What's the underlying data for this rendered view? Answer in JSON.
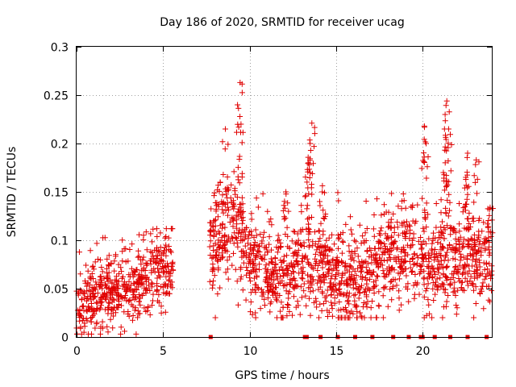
{
  "chart_data": {
    "type": "scatter",
    "title": "Day 186 of 2020, SRMTID for receiver ucag",
    "xlabel": "GPS time / hours",
    "ylabel": "SRMTID / TECUs",
    "xlim": [
      0,
      24
    ],
    "ylim": [
      0,
      0.3
    ],
    "x_ticks": [
      0,
      5,
      10,
      15,
      20
    ],
    "x_tick_labels": [
      "0",
      "5",
      "10",
      "15",
      "20"
    ],
    "y_ticks": [
      0,
      0.05,
      0.1,
      0.15,
      0.2,
      0.25,
      0.3
    ],
    "y_tick_labels": [
      "0",
      "0.05",
      "0.1",
      "0.15",
      "0.2",
      "0.25",
      "0.3"
    ],
    "grid": true,
    "marker": "+",
    "series": [
      {
        "name": "SRMTID",
        "color": "#e00000",
        "segments": [
          {
            "x_start": 0.0,
            "x_end": 5.6,
            "n": 520,
            "baseline": [
              [
                0,
                0.035
              ],
              [
                1,
                0.04
              ],
              [
                2,
                0.045
              ],
              [
                3,
                0.05
              ],
              [
                4,
                0.06
              ],
              [
                5,
                0.07
              ],
              [
                5.6,
                0.08
              ]
            ],
            "spread": 0.022,
            "min": 0.003,
            "max": 0.112
          },
          {
            "x_start": 7.7,
            "x_end": 24.0,
            "n": 1500,
            "baseline": [
              [
                7.7,
                0.09
              ],
              [
                8.5,
                0.1
              ],
              [
                9.2,
                0.12
              ],
              [
                9.8,
                0.08
              ],
              [
                10.5,
                0.07
              ],
              [
                11.5,
                0.065
              ],
              [
                12.5,
                0.07
              ],
              [
                13.5,
                0.085
              ],
              [
                14.5,
                0.07
              ],
              [
                15.5,
                0.055
              ],
              [
                16.5,
                0.06
              ],
              [
                17.5,
                0.08
              ],
              [
                18.5,
                0.09
              ],
              [
                19.5,
                0.085
              ],
              [
                20.5,
                0.075
              ],
              [
                21.5,
                0.08
              ],
              [
                22.5,
                0.08
              ],
              [
                23.5,
                0.08
              ],
              [
                24.0,
                0.075
              ]
            ],
            "spread": 0.028,
            "min": 0.02,
            "max": 0.27
          }
        ],
        "peaks": [
          {
            "x": 8.3,
            "y": 0.16
          },
          {
            "x": 8.6,
            "y": 0.215
          },
          {
            "x": 9.45,
            "y": 0.263
          },
          {
            "x": 9.3,
            "y": 0.24
          },
          {
            "x": 9.5,
            "y": 0.22
          },
          {
            "x": 12.1,
            "y": 0.15
          },
          {
            "x": 13.6,
            "y": 0.221
          },
          {
            "x": 13.5,
            "y": 0.2
          },
          {
            "x": 13.4,
            "y": 0.18
          },
          {
            "x": 14.2,
            "y": 0.15
          },
          {
            "x": 20.1,
            "y": 0.218
          },
          {
            "x": 20.2,
            "y": 0.2
          },
          {
            "x": 21.4,
            "y": 0.244
          },
          {
            "x": 21.3,
            "y": 0.23
          },
          {
            "x": 21.5,
            "y": 0.215
          },
          {
            "x": 21.2,
            "y": 0.17
          },
          {
            "x": 22.6,
            "y": 0.19
          },
          {
            "x": 23.1,
            "y": 0.183
          },
          {
            "x": 22.5,
            "y": 0.165
          },
          {
            "x": 23.9,
            "y": 0.134
          }
        ],
        "zero_points_x": [
          7.75,
          13.2,
          13.3,
          14.1,
          15.1,
          16.1,
          17.1,
          18.3,
          19.2,
          19.9,
          20.0,
          20.7,
          21.6,
          22.6,
          23.7
        ]
      }
    ]
  }
}
